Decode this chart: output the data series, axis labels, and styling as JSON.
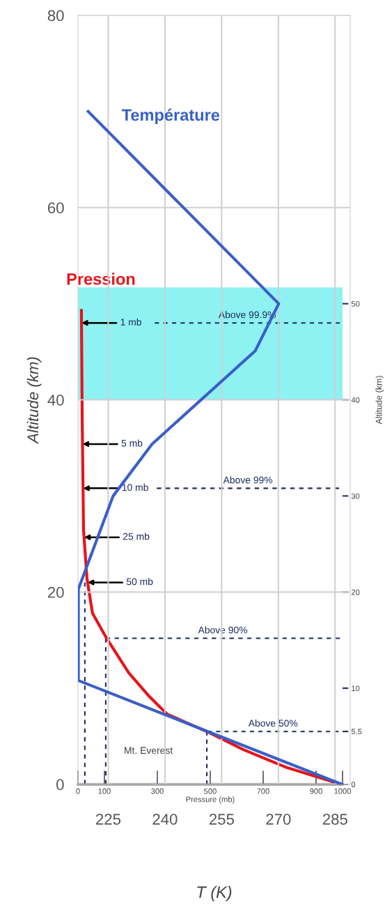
{
  "chart_data": [
    {
      "type": "line",
      "xlabel": "T (K)",
      "ylabel": "Altitude (km)",
      "xlim": [
        217,
        289
      ],
      "xticks": [
        225,
        240,
        255,
        270,
        285
      ],
      "ylim": [
        0,
        80
      ],
      "yticks": [
        0,
        20,
        40,
        60,
        80
      ],
      "grid": true,
      "series": [
        {
          "name": "Température",
          "color": "#3a5fc8",
          "x": [
            219.7,
            270.1,
            263.9,
            236.6,
            226.3,
            217.1,
            217.1,
            286.8
          ],
          "values": [
            70,
            50,
            45.1,
            35.4,
            30,
            20.3,
            10.8,
            0
          ]
        }
      ]
    },
    {
      "type": "line",
      "xlabel": "Pressure (mb)",
      "ylabel": "Altitude (km)",
      "xlim": [
        0,
        1000
      ],
      "xticks": [
        0,
        100,
        300,
        500,
        700,
        900,
        1000
      ],
      "ylim": [
        0,
        80
      ],
      "yticks": [
        0,
        5.5,
        10,
        20,
        30,
        40,
        50
      ],
      "series": [
        {
          "name": "Pression",
          "color": "#e8131b",
          "x": [
            13,
            16,
            21,
            34,
            55,
            108,
            192,
            271,
            337,
            495,
            626,
            784,
            995
          ],
          "values": [
            49.3,
            38,
            26.5,
            21.4,
            17.8,
            15.2,
            11.6,
            9.1,
            7.3,
            5.4,
            3.6,
            1.8,
            0
          ]
        },
        {
          "name": "Above 99.9%",
          "color": "#1d2a5e",
          "line_style": "dashed",
          "x": [
            290,
            990
          ],
          "values": [
            48,
            48
          ]
        },
        {
          "name": "Above 99%",
          "color": "#1d2a5e",
          "line_style": "dashed",
          "x": [
            298,
            987
          ],
          "values": [
            30.8,
            30.8
          ]
        },
        {
          "name": "Above 90%",
          "color": "#1d2a5e",
          "line_style": "dashed",
          "x": [
            105,
            990
          ],
          "values": [
            15.2,
            15.2
          ]
        },
        {
          "name": "Above 50%",
          "color": "#1d2a5e",
          "line_style": "dashed",
          "x": [
            490,
            985
          ],
          "values": [
            5.5,
            5.5
          ]
        },
        {
          "color": "#1d2a5e",
          "line_style": "dashed",
          "x": [
            26,
            26
          ],
          "values": [
            0,
            21
          ]
        },
        {
          "color": "#1d2a5e",
          "line_style": "dashed",
          "x": [
            105,
            105
          ],
          "values": [
            0,
            15.2
          ]
        },
        {
          "color": "#1d2a5e",
          "line_style": "dashed",
          "x": [
            487,
            487
          ],
          "values": [
            0,
            5.5
          ]
        }
      ],
      "bands": [
        {
          "axis": "y",
          "from": 40,
          "to": 51.7,
          "color": "#8ef2f2"
        }
      ],
      "annotations": [
        {
          "text": "1 mb",
          "x": 13.3,
          "y": 48
        },
        {
          "text": "5 mb",
          "x": 17.1,
          "y": 35.4
        },
        {
          "text": "10 mb",
          "x": 19.1,
          "y": 30.8
        },
        {
          "text": "25 mb",
          "x": 23,
          "y": 25.7
        },
        {
          "text": "50 mb",
          "x": 36.3,
          "y": 21
        },
        "Mt. Everest"
      ]
    }
  ]
}
